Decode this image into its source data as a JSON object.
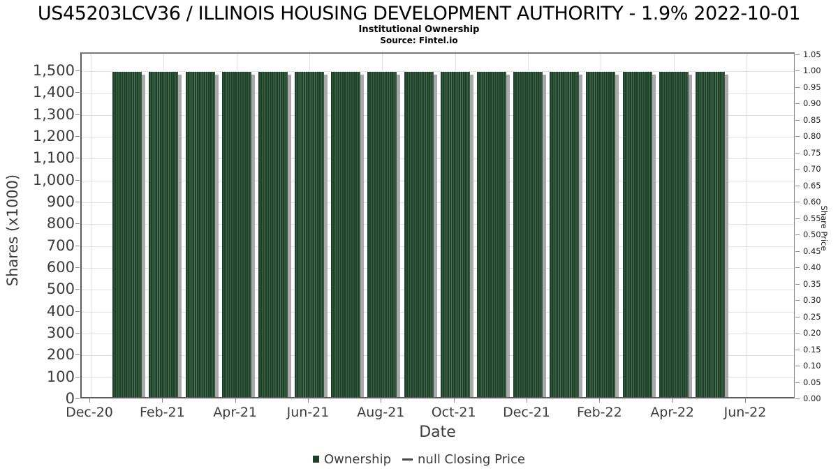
{
  "header": {
    "title": "US45203LCV36 / ILLINOIS HOUSING DEVELOPMENT AUTHORITY - 1.9% 2022-10-01",
    "subtitle": "Institutional Ownership",
    "source": "Source: Fintel.io"
  },
  "chart_data": {
    "type": "bar",
    "title": "US45203LCV36 / ILLINOIS HOUSING DEVELOPMENT AUTHORITY - 1.9% 2022-10-01",
    "subtitle": "Institutional Ownership",
    "source": "Source: Fintel.io",
    "xlabel": "Date",
    "ylabel_left": "Shares (x1000)",
    "ylabel_right": "Share Price",
    "grid": true,
    "legend_position": "bottom",
    "x_tick_labels": [
      "Dec-20",
      "Feb-21",
      "Apr-21",
      "Jun-21",
      "Aug-21",
      "Oct-21",
      "Dec-21",
      "Feb-22",
      "Apr-22",
      "Jun-22"
    ],
    "y_left_tick_labels": [
      "0",
      "100",
      "200",
      "300",
      "400",
      "500",
      "600",
      "700",
      "800",
      "900",
      "1,000",
      "1,100",
      "1,200",
      "1,300",
      "1,400",
      "1,500"
    ],
    "y_left_range": [
      0,
      1583
    ],
    "y_left_units": "thousands of shares",
    "y_right_tick_labels": [
      "0.00",
      "0.05",
      "0.10",
      "0.15",
      "0.20",
      "0.25",
      "0.30",
      "0.35",
      "0.40",
      "0.45",
      "0.50",
      "0.55",
      "0.60",
      "0.65",
      "0.70",
      "0.75",
      "0.80",
      "0.85",
      "0.90",
      "0.95",
      "1.00",
      "1.05"
    ],
    "y_right_range": [
      0,
      1.056
    ],
    "categories": [
      "Jan-21",
      "Feb-21",
      "Mar-21",
      "Apr-21",
      "May-21",
      "Jun-21",
      "Jul-21",
      "Aug-21",
      "Sep-21",
      "Oct-21",
      "Nov-21",
      "Dec-21",
      "Jan-22",
      "Feb-22",
      "Mar-22",
      "Apr-22",
      "May-22"
    ],
    "series": [
      {
        "name": "Ownership",
        "type": "bar",
        "values": [
          1500,
          1500,
          1500,
          1500,
          1500,
          1500,
          1500,
          1500,
          1500,
          1500,
          1500,
          1500,
          1500,
          1500,
          1500,
          1500,
          1500
        ]
      },
      {
        "name": "null Closing Price",
        "type": "line",
        "values": []
      }
    ],
    "note": "each monthly bar is a tight cluster of thin weekly observation bars, all at 1,500"
  },
  "legend": {
    "items": [
      {
        "label": "Ownership",
        "marker": "square"
      },
      {
        "label": "null Closing Price",
        "marker": "line"
      }
    ]
  },
  "colors": {
    "bar": "#1d4128",
    "bar_stripe": "#4d7356",
    "bar_shadow": "#a9a9a9",
    "gridline": "#e2e2e2",
    "axis_text": "#3c3c3c",
    "legend_line": "#474747",
    "title_text": "#000000"
  }
}
